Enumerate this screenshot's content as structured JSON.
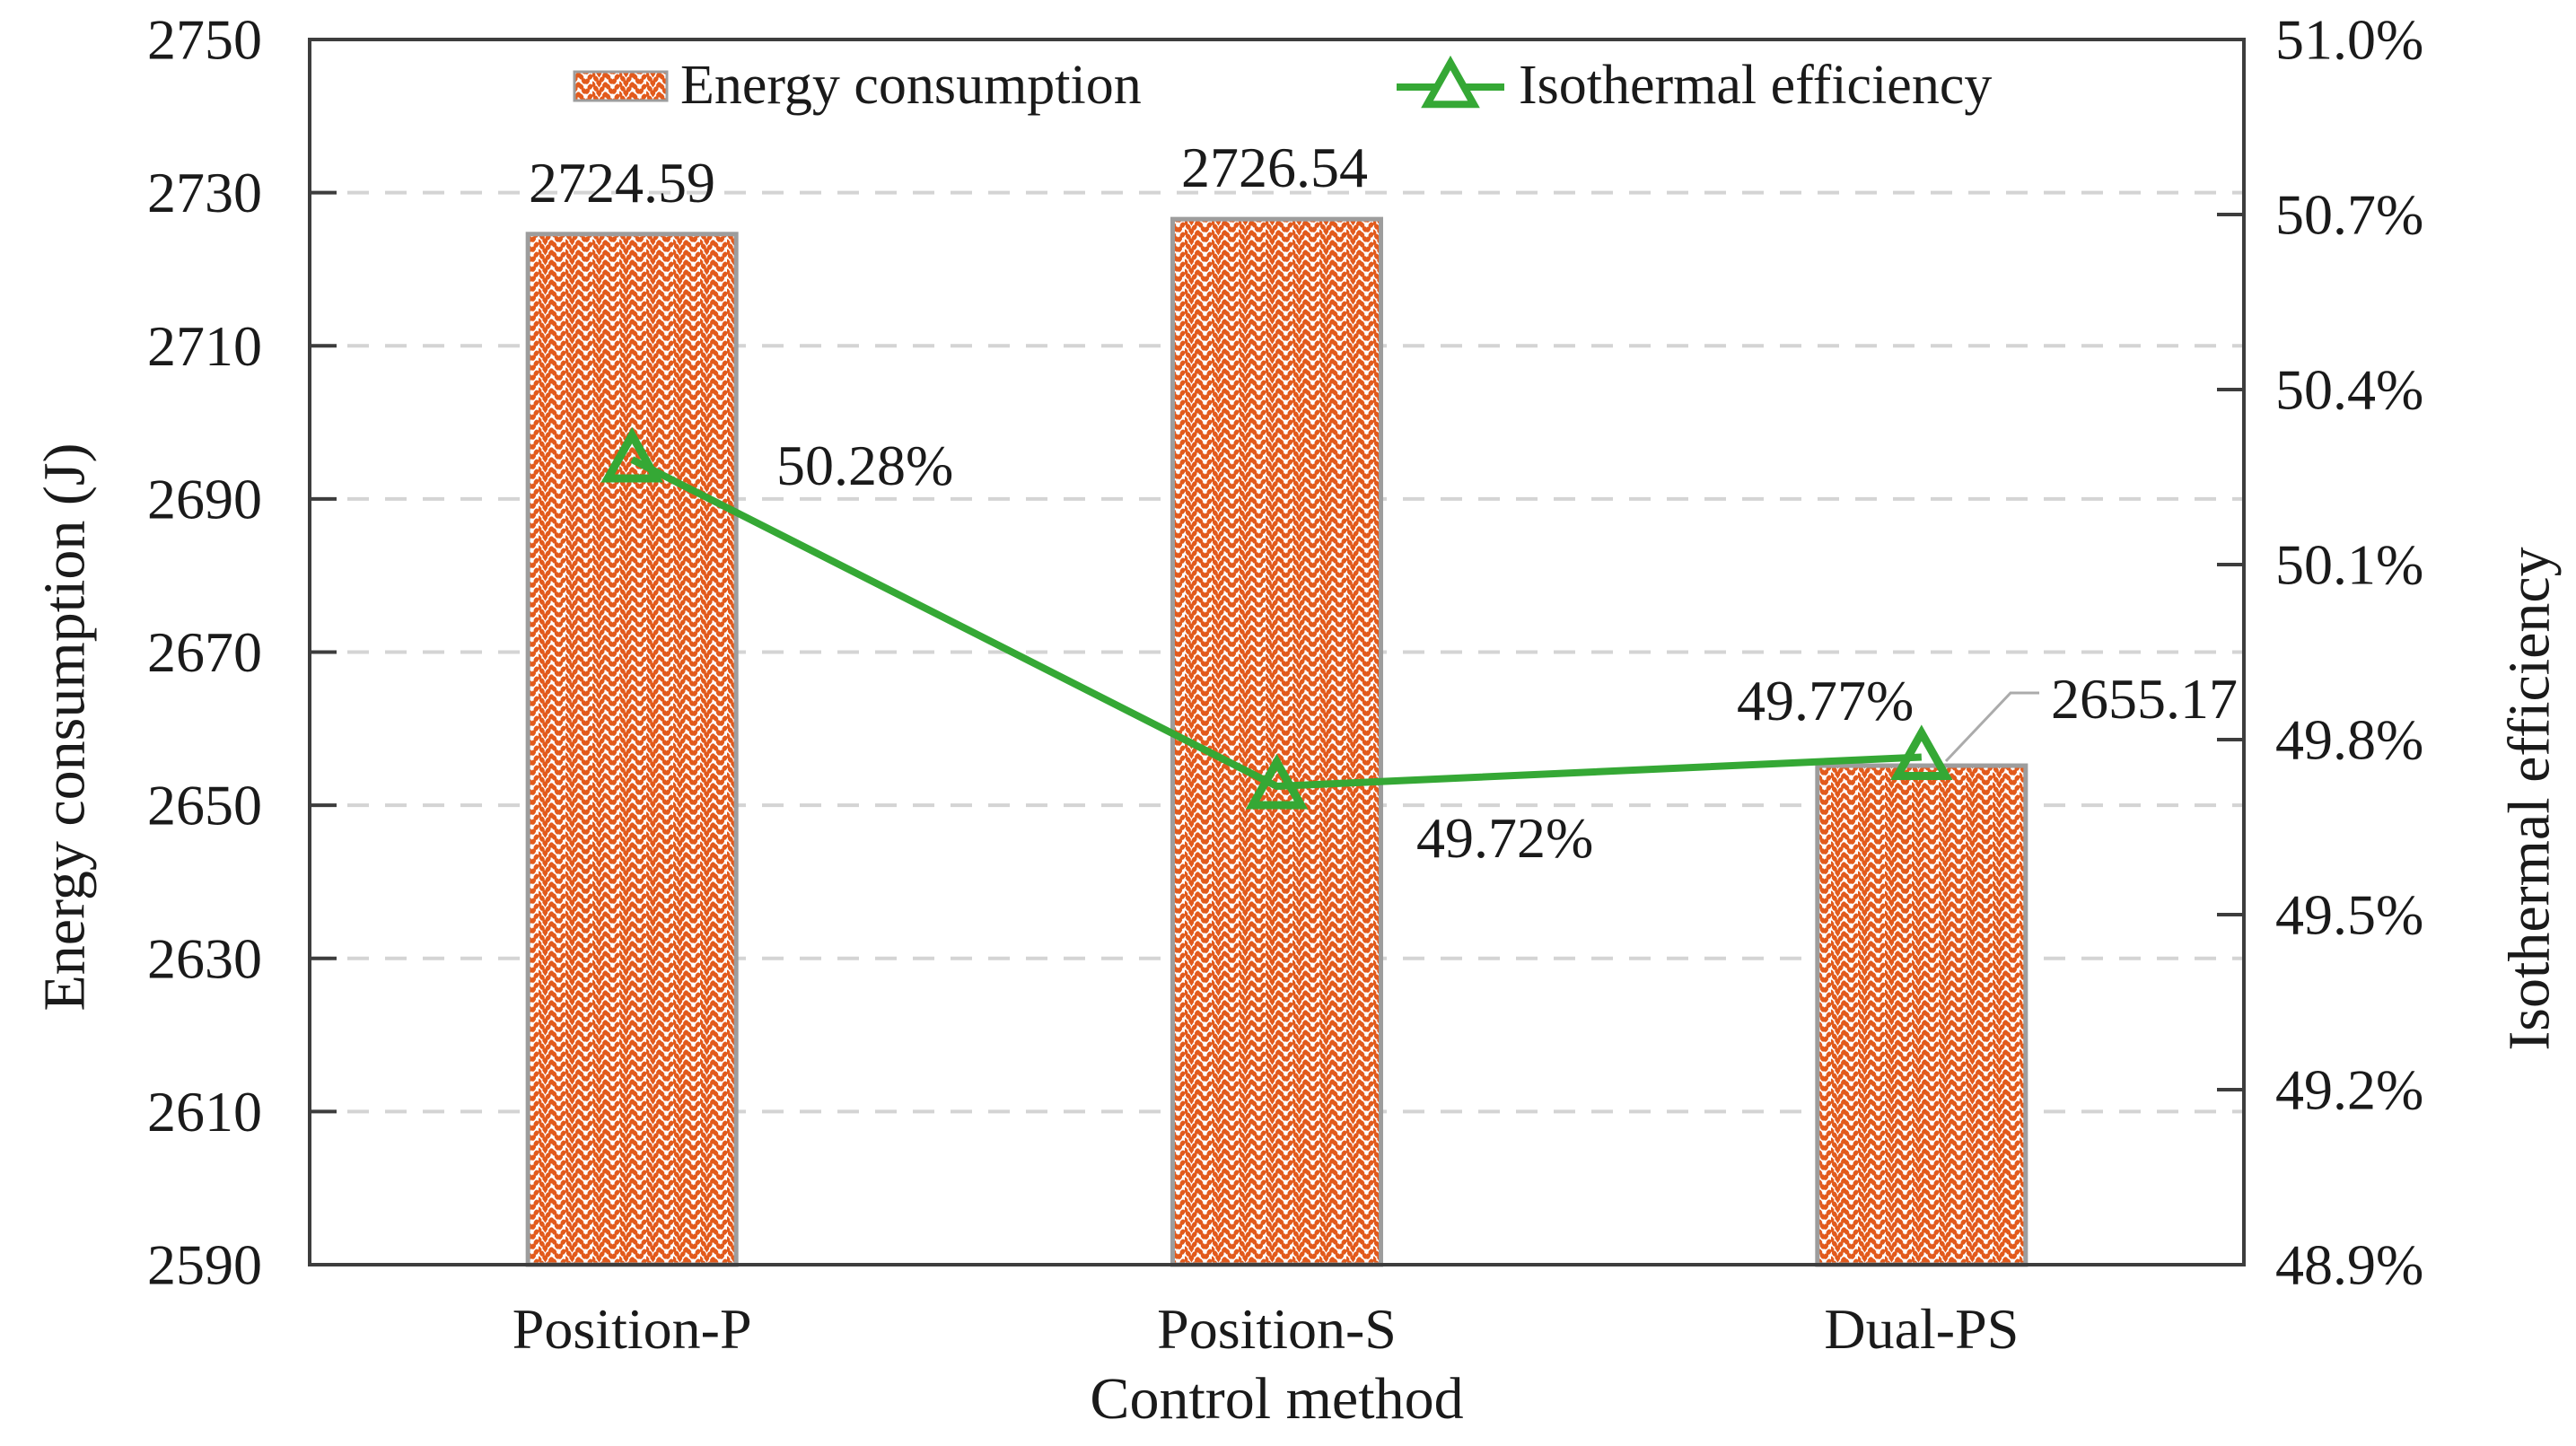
{
  "chart_data": {
    "type": "bar",
    "subtype": "bar-line-combo",
    "categories": [
      "Position-P",
      "Position-S",
      "Dual-PS"
    ],
    "series": [
      {
        "name": "Energy consumption",
        "chart_type": "bar",
        "axis": "left",
        "values": [
          2724.59,
          2726.54,
          2655.17
        ],
        "data_labels": [
          "2724.59",
          "2726.54",
          "2655.17"
        ]
      },
      {
        "name": "Isothermal efficiency",
        "chart_type": "line",
        "marker": "hollow-triangle",
        "axis": "right",
        "values": [
          50.28,
          49.72,
          49.77
        ],
        "data_labels": [
          "50.28%",
          "49.72%",
          "49.77%"
        ]
      }
    ],
    "x_axis": {
      "label": "Control method"
    },
    "left_axis": {
      "label": "Energy consumption (J)",
      "min": 2590,
      "max": 2750,
      "step": 20,
      "ticks": [
        "2750",
        "2730",
        "2710",
        "2690",
        "2670",
        "2650",
        "2630",
        "2610",
        "2590"
      ]
    },
    "right_axis": {
      "label": "Isothermal efficiency",
      "min": 48.9,
      "max": 51.0,
      "step": 0.3,
      "ticks": [
        "51.0%",
        "50.7%",
        "50.4%",
        "50.1%",
        "49.8%",
        "49.5%",
        "49.2%",
        "48.9%"
      ]
    },
    "legend": {
      "position": "top-inside",
      "items": [
        "Energy consumption",
        "Isothermal efficiency"
      ]
    },
    "grid": {
      "horizontal": "dashed",
      "vertical": "none"
    },
    "colors": {
      "bar_hatch": "#E25A1C",
      "bar_border": "#9D9D9D",
      "bar_label": "#E65C1E",
      "line": "#35A835",
      "line_label": "#2E8B2E",
      "grid": "#D4D4D4",
      "axis": "#3D3D3D",
      "leader": "#ABABAB"
    }
  }
}
